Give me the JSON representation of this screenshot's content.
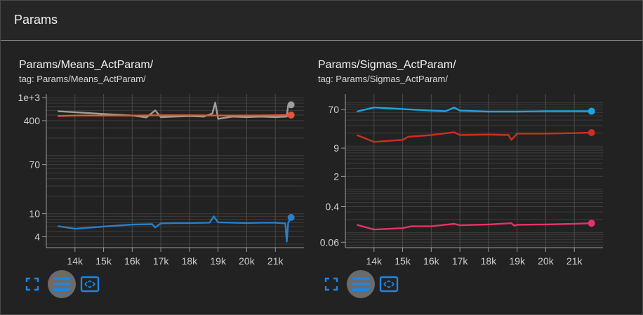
{
  "section": {
    "title": "Params"
  },
  "colors": {
    "grid": "#4a4a4a",
    "tick_text": "#d0d0d0",
    "icon_blue": "#1a86e6"
  },
  "icons": {
    "expand": "fullscreen-icon",
    "lines": "toggle-y-axis-log-icon",
    "fit": "fit-domain-icon"
  },
  "cards": [
    {
      "title": "Params/Means_ActParam/",
      "tag": "tag: Params/Means_ActParam/"
    },
    {
      "title": "Params/Sigmas_ActParam/",
      "tag": "tag: Params/Sigmas_ActParam/"
    }
  ],
  "chart_data": [
    {
      "type": "line",
      "title": "Params/Means_ActParam/",
      "xlabel": "",
      "ylabel": "",
      "yscale": "log",
      "xlim": [
        13000,
        22000
      ],
      "ylim": [
        2.6,
        1150
      ],
      "x_ticks": [
        14000,
        15000,
        16000,
        17000,
        18000,
        19000,
        20000,
        21000
      ],
      "x_tick_labels": [
        "14k",
        "15k",
        "16k",
        "17k",
        "18k",
        "19k",
        "20k",
        "21k"
      ],
      "y_ticks": [
        4,
        10,
        70,
        400,
        1000
      ],
      "y_tick_labels": [
        "4",
        "10",
        "70",
        "400",
        "1e+3"
      ],
      "grid": true,
      "series": [
        {
          "color": "#9e9e9e",
          "points": [
            [
              13400,
              580
            ],
            [
              14000,
              560
            ],
            [
              15000,
              520
            ],
            [
              16000,
              490
            ],
            [
              16500,
              455
            ],
            [
              16800,
              600
            ],
            [
              17000,
              460
            ],
            [
              17500,
              470
            ],
            [
              18000,
              480
            ],
            [
              18500,
              470
            ],
            [
              18800,
              530
            ],
            [
              18900,
              820
            ],
            [
              19000,
              430
            ],
            [
              19500,
              470
            ],
            [
              20000,
              460
            ],
            [
              20500,
              470
            ],
            [
              21000,
              460
            ],
            [
              21400,
              470
            ],
            [
              21450,
              750
            ],
            [
              21550,
              750
            ]
          ]
        },
        {
          "color": "#e8553a",
          "points": [
            [
              13400,
              480
            ],
            [
              14000,
              490
            ],
            [
              15000,
              490
            ],
            [
              16000,
              490
            ],
            [
              17000,
              495
            ],
            [
              18000,
              495
            ],
            [
              19000,
              490
            ],
            [
              20000,
              490
            ],
            [
              21000,
              495
            ],
            [
              21550,
              500
            ]
          ]
        },
        {
          "color": "#2a7fc8",
          "points": [
            [
              13400,
              6.1
            ],
            [
              14000,
              5.5
            ],
            [
              15000,
              6.0
            ],
            [
              16000,
              6.5
            ],
            [
              16700,
              6.6
            ],
            [
              16800,
              5.8
            ],
            [
              17000,
              6.8
            ],
            [
              17500,
              6.9
            ],
            [
              18000,
              6.9
            ],
            [
              18700,
              7.0
            ],
            [
              18850,
              9.0
            ],
            [
              19000,
              7.1
            ],
            [
              19500,
              7.0
            ],
            [
              20000,
              6.9
            ],
            [
              20500,
              7.0
            ],
            [
              21000,
              7.0
            ],
            [
              21350,
              6.8
            ],
            [
              21400,
              3.3
            ],
            [
              21450,
              7.0
            ],
            [
              21550,
              8.6
            ]
          ]
        }
      ]
    },
    {
      "type": "line",
      "title": "Params/Sigmas_ActParam/",
      "xlabel": "",
      "ylabel": "",
      "yscale": "log",
      "xlim": [
        13000,
        22000
      ],
      "ylim": [
        0.045,
        160
      ],
      "x_ticks": [
        14000,
        15000,
        16000,
        17000,
        18000,
        19000,
        20000,
        21000
      ],
      "x_tick_labels": [
        "14k",
        "15k",
        "16k",
        "17k",
        "18k",
        "19k",
        "20k",
        "21k"
      ],
      "y_ticks": [
        0.06,
        0.4,
        2,
        9,
        70
      ],
      "y_tick_labels": [
        "0.06",
        "0.4",
        "2",
        "9",
        "70"
      ],
      "grid": true,
      "series": [
        {
          "color": "#1fa2e0",
          "points": [
            [
              13400,
              63
            ],
            [
              14000,
              78
            ],
            [
              15000,
              72
            ],
            [
              16000,
              66
            ],
            [
              16500,
              64
            ],
            [
              16800,
              78
            ],
            [
              17000,
              66
            ],
            [
              18000,
              63
            ],
            [
              19000,
              63
            ],
            [
              20000,
              64
            ],
            [
              21000,
              64
            ],
            [
              21600,
              64
            ]
          ]
        },
        {
          "color": "#c9301f",
          "points": [
            [
              13400,
              18
            ],
            [
              14000,
              12.5
            ],
            [
              15000,
              14
            ],
            [
              15200,
              16.5
            ],
            [
              16000,
              18
            ],
            [
              16800,
              21
            ],
            [
              17000,
              18
            ],
            [
              18000,
              18.5
            ],
            [
              18700,
              18
            ],
            [
              18800,
              14
            ],
            [
              19000,
              19.5
            ],
            [
              20000,
              19.5
            ],
            [
              21000,
              20
            ],
            [
              21600,
              20.5
            ]
          ]
        },
        {
          "color": "#e8326a",
          "points": [
            [
              13400,
              0.152
            ],
            [
              14000,
              0.118
            ],
            [
              15000,
              0.127
            ],
            [
              15300,
              0.14
            ],
            [
              16000,
              0.14
            ],
            [
              16800,
              0.16
            ],
            [
              17000,
              0.148
            ],
            [
              18000,
              0.155
            ],
            [
              18800,
              0.165
            ],
            [
              18900,
              0.145
            ],
            [
              19000,
              0.152
            ],
            [
              20000,
              0.155
            ],
            [
              21000,
              0.16
            ],
            [
              21600,
              0.165
            ]
          ]
        }
      ]
    }
  ]
}
